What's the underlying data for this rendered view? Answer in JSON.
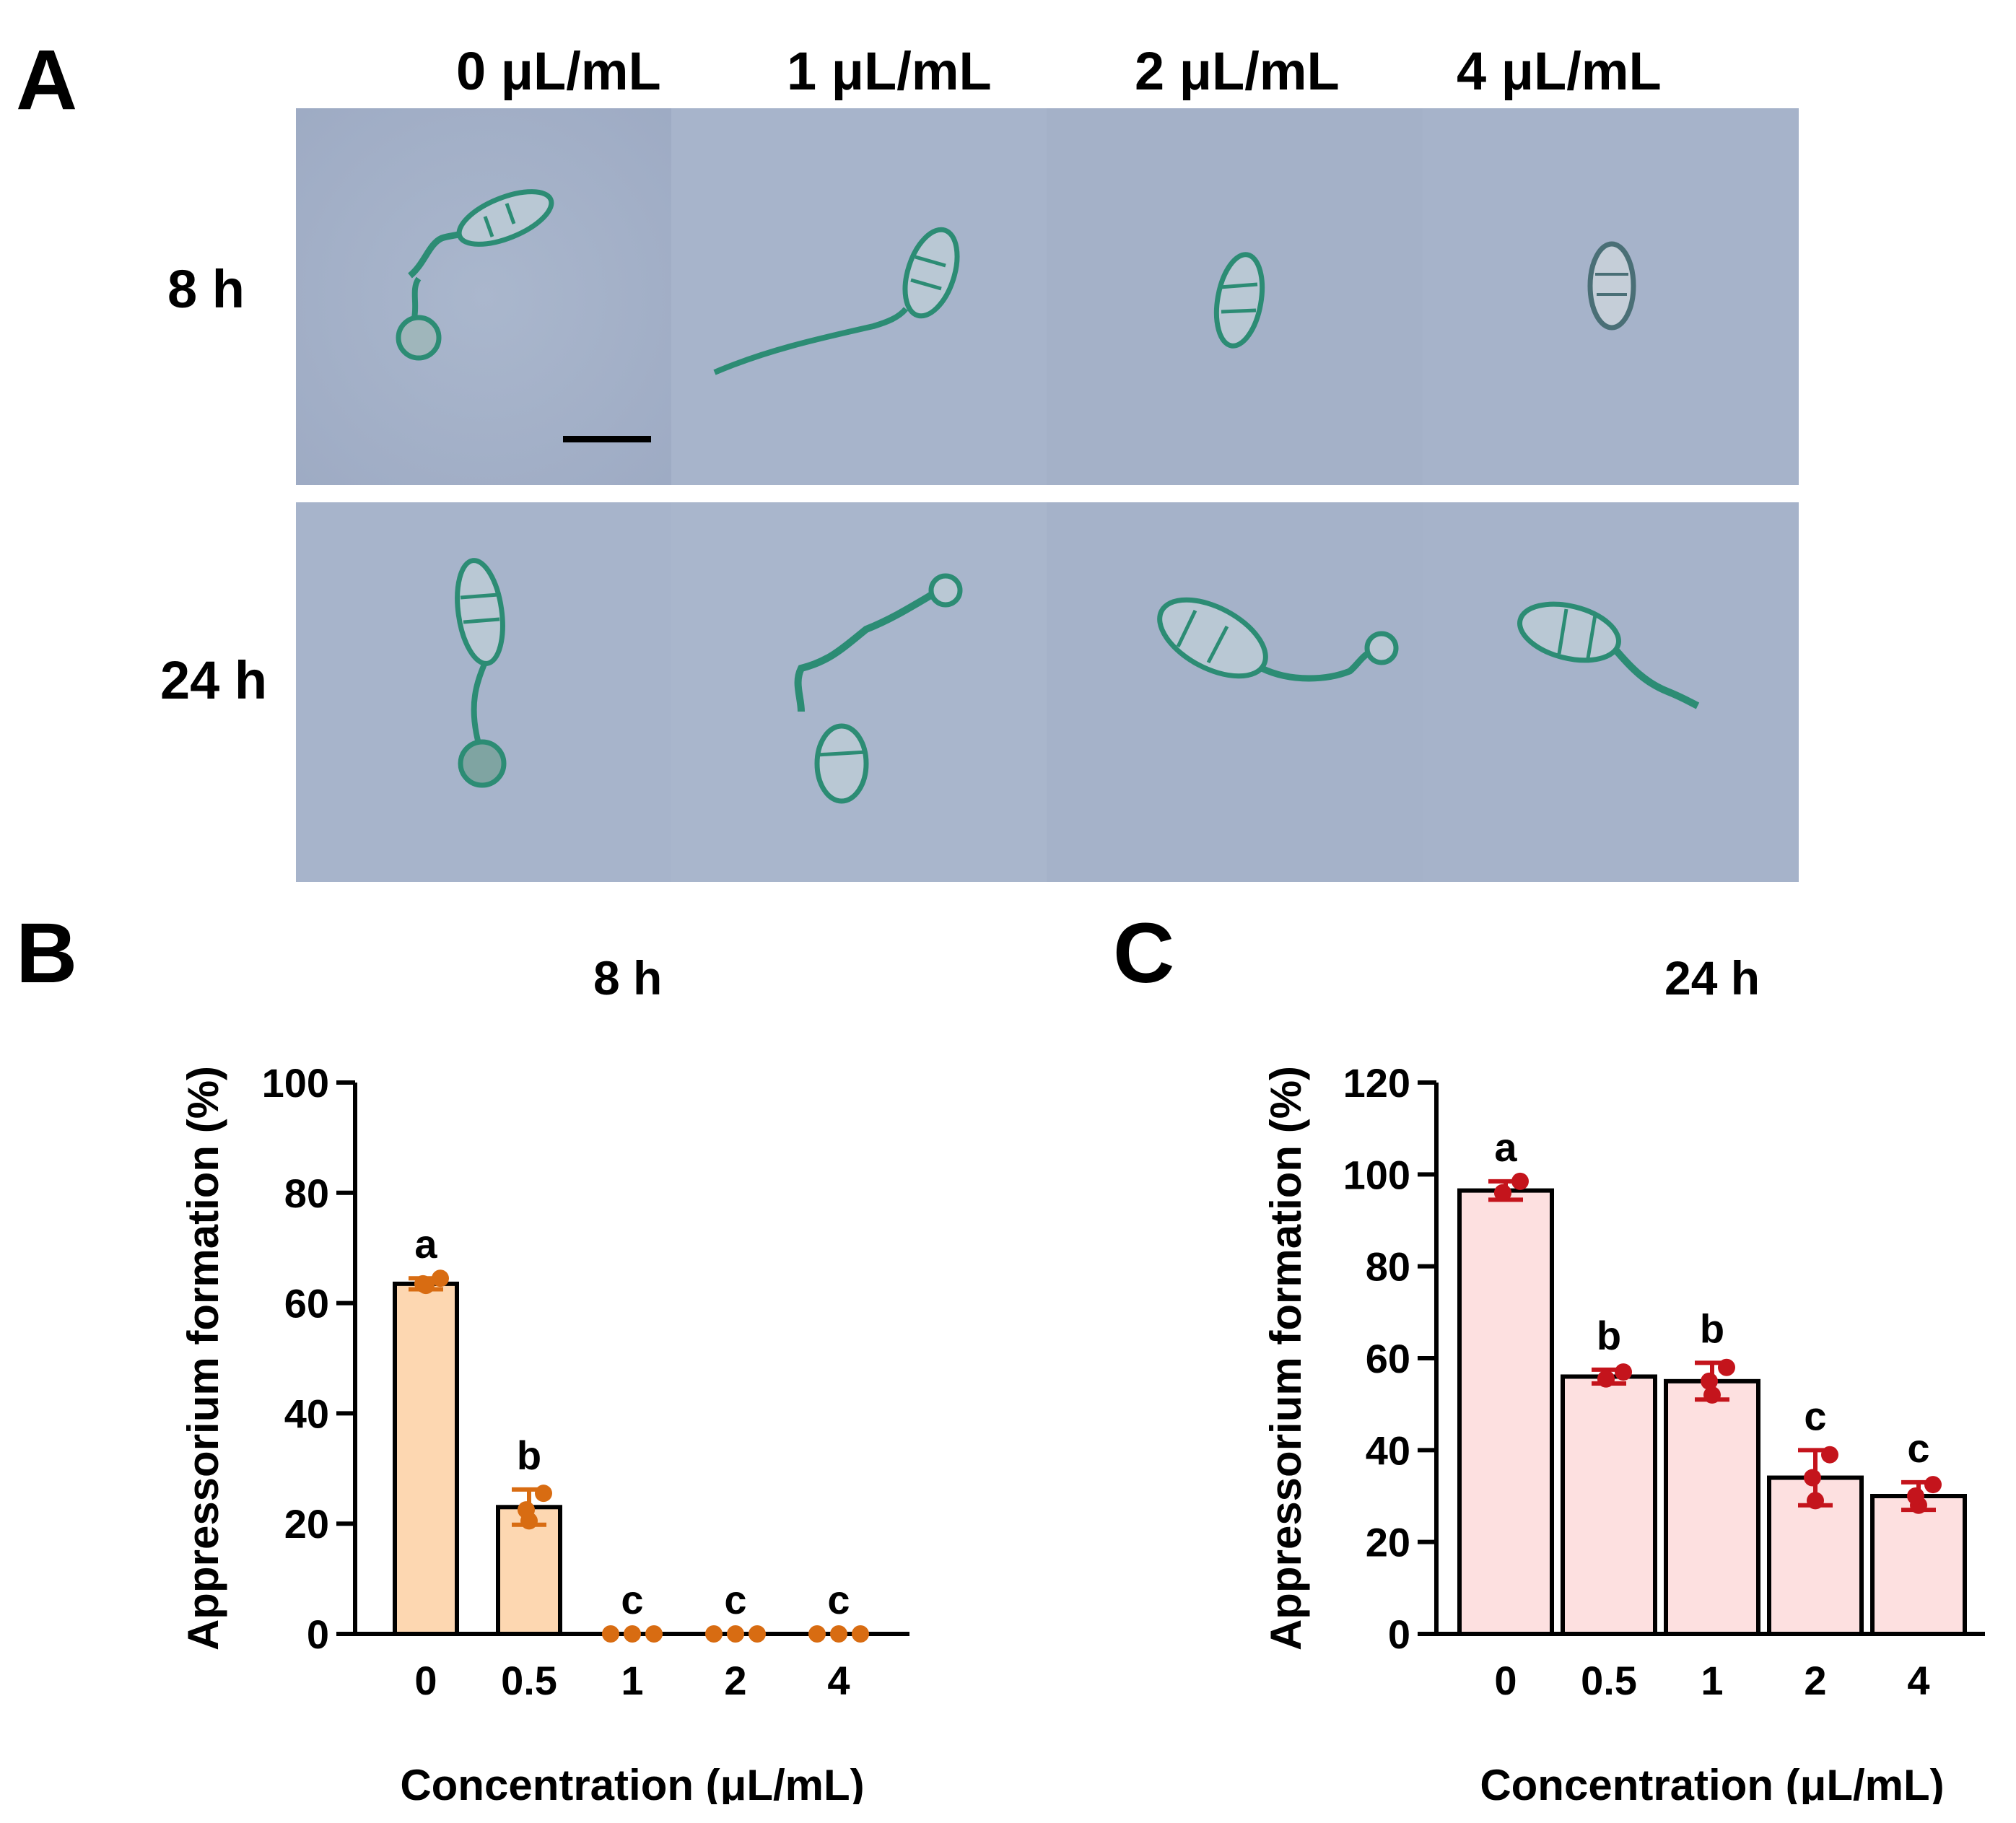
{
  "panel_a": {
    "letter": "A",
    "columns": [
      "0 μL/mL",
      "1 μL/mL",
      "2 μL/mL",
      "4 μL/mL"
    ],
    "rows": [
      "8 h",
      "24 h"
    ],
    "background_color": "#a3b1c9",
    "cell_color": "#2c8c74"
  },
  "chart_data": [
    {
      "panel": "B",
      "type": "bar",
      "title": "8 h",
      "xlabel": "Concentration (μL/mL)",
      "ylabel": "Appressorium formation (%)",
      "categories": [
        "0",
        "0.5",
        "1",
        "2",
        "4"
      ],
      "values": [
        63.5,
        23,
        0,
        0,
        0
      ],
      "error": [
        1.0,
        3.2,
        0,
        0,
        0
      ],
      "points": [
        [
          63.5,
          63.2,
          64.5
        ],
        [
          20.5,
          22.5,
          25.5
        ],
        [
          0,
          0,
          0
        ],
        [
          0,
          0,
          0
        ],
        [
          0,
          0,
          0
        ]
      ],
      "letters": [
        "a",
        "b",
        "c",
        "c",
        "c"
      ],
      "ylim": [
        0,
        100
      ],
      "yticks": [
        0,
        20,
        40,
        60,
        80,
        100
      ],
      "bar_color": "#fdd7b1",
      "point_color": "#d86c12"
    },
    {
      "panel": "C",
      "type": "bar",
      "title": "24 h",
      "xlabel": "Concentration (μL/mL)",
      "ylabel": "Appressorium formation (%)",
      "categories": [
        "0",
        "0.5",
        "1",
        "2",
        "4"
      ],
      "values": [
        96.5,
        56,
        55,
        34,
        30
      ],
      "error": [
        2.0,
        1.5,
        4.0,
        6.0,
        3.0
      ],
      "points": [
        [
          96,
          96,
          98.5
        ],
        [
          55.5,
          55.5,
          57
        ],
        [
          52,
          55,
          58
        ],
        [
          29,
          34,
          39
        ],
        [
          28,
          30,
          32.5
        ]
      ],
      "letters": [
        "a",
        "b",
        "b",
        "c",
        "c"
      ],
      "ylim": [
        0,
        120
      ],
      "yticks": [
        0,
        20,
        40,
        60,
        80,
        100,
        120
      ],
      "bar_color": "#fde0e0",
      "point_color": "#c4141c"
    }
  ]
}
